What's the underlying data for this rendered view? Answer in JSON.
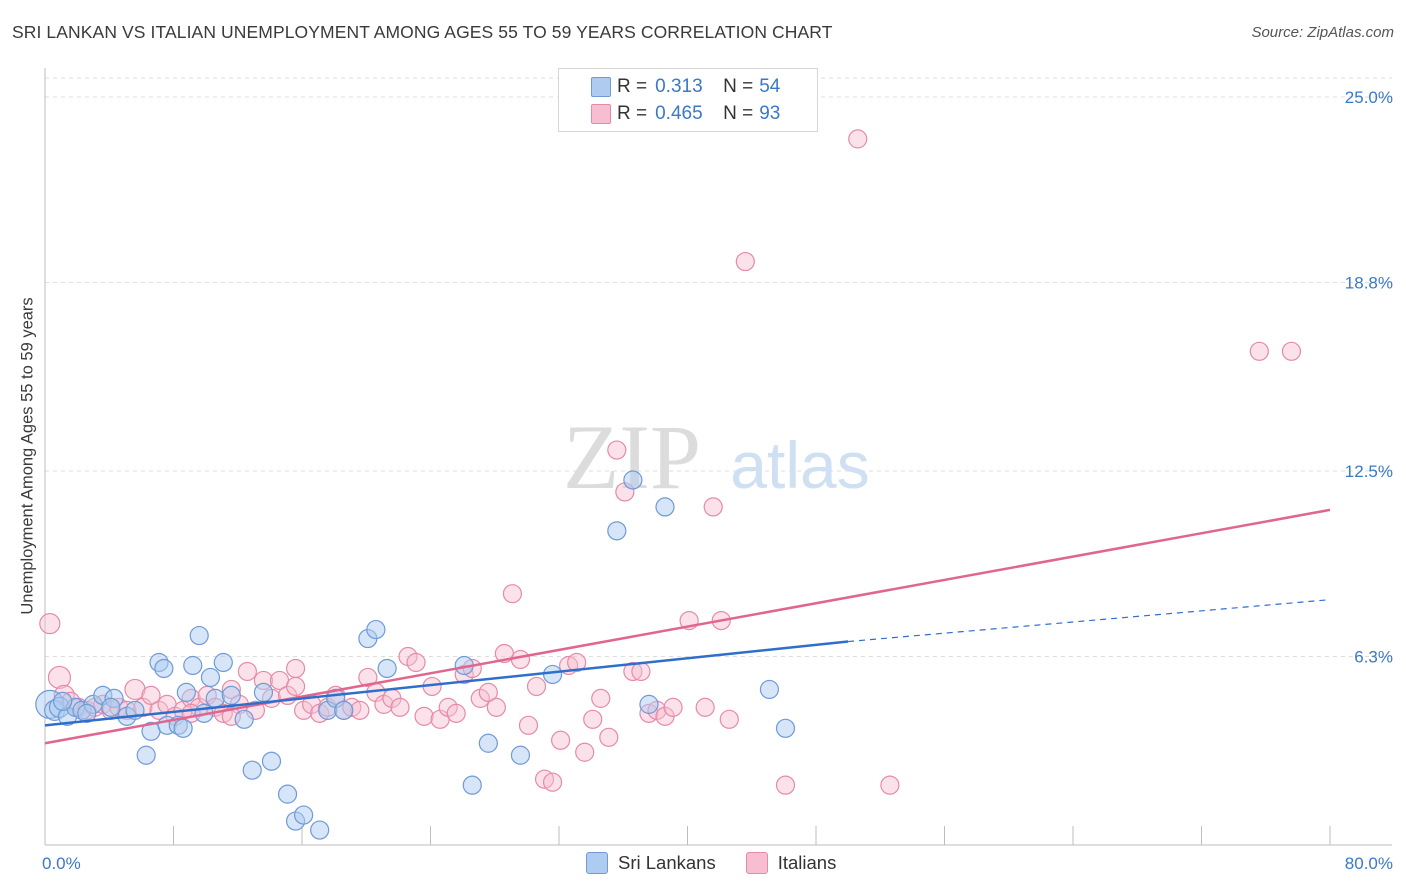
{
  "title": "SRI LANKAN VS ITALIAN UNEMPLOYMENT AMONG AGES 55 TO 59 YEARS CORRELATION CHART",
  "source": "Source: ZipAtlas.com",
  "watermark": {
    "zip": "ZIP",
    "atlas": "atlas"
  },
  "legend": {
    "sri": {
      "r_label": "R =",
      "r_value": "0.313",
      "n_label": "N =",
      "n_value": "54"
    },
    "ita": {
      "r_label": "R =",
      "r_value": "0.465",
      "n_label": "N =",
      "n_value": "93"
    }
  },
  "bottom_legend": {
    "sri": "Sri Lankans",
    "ita": "Italians"
  },
  "colors": {
    "sri_fill": "#aecbf0",
    "sri_stroke": "#6f9ad6",
    "sri_line": "#2f6fcc",
    "ita_fill": "#f6bed0",
    "ita_stroke": "#e68aaa",
    "ita_line": "#e0668f",
    "axis_text": "#3b78c8",
    "grid": "#dddddd"
  },
  "chart_data": {
    "type": "scatter",
    "title": "SRI LANKAN VS ITALIAN UNEMPLOYMENT AMONG AGES 55 TO 59 YEARS CORRELATION CHART",
    "xlabel": "",
    "ylabel": "Unemployment Among Ages 55 to 59 years",
    "xlim": [
      0,
      80
    ],
    "ylim": [
      0,
      25.0
    ],
    "x_tick_labels": [
      "0.0%",
      "80.0%"
    ],
    "y_ticks": [
      6.3,
      12.5,
      18.8,
      25.0
    ],
    "y_tick_labels": [
      "6.3%",
      "12.5%",
      "18.8%",
      "25.0%"
    ],
    "grid": "horizontal dashed",
    "legend_position": "top-center",
    "series": [
      {
        "name": "Sri Lankans",
        "r": 0.313,
        "n": 54,
        "trend": {
          "x0": 0,
          "y0": 4.0,
          "x1": 50,
          "y1": 6.8,
          "dash_x1": 80,
          "dash_y1": 8.2
        },
        "points": [
          [
            0.3,
            4.7,
            14
          ],
          [
            0.6,
            4.5,
            10
          ],
          [
            0.9,
            4.6,
            10
          ],
          [
            1.4,
            4.3,
            9
          ],
          [
            1.9,
            4.6,
            9
          ],
          [
            2.3,
            4.5,
            9
          ],
          [
            3.0,
            4.7,
            9
          ],
          [
            3.6,
            5.0,
            9
          ],
          [
            4.3,
            4.9,
            9
          ],
          [
            5.1,
            4.3,
            9
          ],
          [
            5.6,
            4.5,
            9
          ],
          [
            6.3,
            3.0,
            9
          ],
          [
            6.6,
            3.8,
            9
          ],
          [
            7.1,
            6.1,
            9
          ],
          [
            7.4,
            5.9,
            9
          ],
          [
            7.6,
            4.0,
            9
          ],
          [
            8.3,
            4.0,
            9
          ],
          [
            8.6,
            3.9,
            9
          ],
          [
            8.8,
            5.1,
            9
          ],
          [
            9.2,
            6.0,
            9
          ],
          [
            9.6,
            7.0,
            9
          ],
          [
            9.9,
            4.4,
            9
          ],
          [
            10.3,
            5.6,
            9
          ],
          [
            10.6,
            4.9,
            9
          ],
          [
            11.1,
            6.1,
            9
          ],
          [
            11.6,
            5.0,
            9
          ],
          [
            12.4,
            4.2,
            9
          ],
          [
            12.9,
            2.5,
            9
          ],
          [
            13.6,
            5.1,
            9
          ],
          [
            14.1,
            2.8,
            9
          ],
          [
            15.1,
            1.7,
            9
          ],
          [
            15.6,
            0.8,
            9
          ],
          [
            16.1,
            1.0,
            9
          ],
          [
            17.1,
            0.5,
            9
          ],
          [
            17.6,
            4.5,
            9
          ],
          [
            18.1,
            4.9,
            9
          ],
          [
            18.6,
            4.5,
            9
          ],
          [
            20.1,
            6.9,
            9
          ],
          [
            20.6,
            7.2,
            9
          ],
          [
            21.3,
            5.9,
            9
          ],
          [
            26.1,
            6.0,
            9
          ],
          [
            26.6,
            2.0,
            9
          ],
          [
            27.6,
            3.4,
            9
          ],
          [
            29.6,
            3.0,
            9
          ],
          [
            31.6,
            5.7,
            9
          ],
          [
            35.6,
            10.5,
            9
          ],
          [
            36.6,
            12.2,
            9
          ],
          [
            37.6,
            4.7,
            9
          ],
          [
            38.6,
            11.3,
            9
          ],
          [
            45.1,
            5.2,
            9
          ],
          [
            46.1,
            3.9,
            9
          ],
          [
            2.6,
            4.4,
            9
          ],
          [
            4.1,
            4.6,
            9
          ],
          [
            1.1,
            4.8,
            9
          ]
        ]
      },
      {
        "name": "Italians",
        "r": 0.465,
        "n": 93,
        "trend": {
          "x0": 0,
          "y0": 3.4,
          "x1": 80,
          "y1": 11.2
        },
        "points": [
          [
            0.3,
            7.4,
            10
          ],
          [
            0.9,
            5.6,
            11
          ],
          [
            1.2,
            5.0,
            10
          ],
          [
            1.6,
            4.8,
            9
          ],
          [
            2.1,
            4.6,
            9
          ],
          [
            2.6,
            4.5,
            9
          ],
          [
            3.1,
            4.6,
            9
          ],
          [
            3.6,
            4.7,
            9
          ],
          [
            4.1,
            4.5,
            9
          ],
          [
            4.6,
            4.6,
            9
          ],
          [
            5.1,
            4.5,
            9
          ],
          [
            5.6,
            5.2,
            10
          ],
          [
            6.1,
            4.6,
            9
          ],
          [
            6.6,
            5.0,
            9
          ],
          [
            7.1,
            4.5,
            9
          ],
          [
            7.6,
            4.7,
            9
          ],
          [
            8.1,
            4.3,
            9
          ],
          [
            8.6,
            4.5,
            9
          ],
          [
            9.1,
            4.9,
            9
          ],
          [
            9.6,
            4.6,
            9
          ],
          [
            10.1,
            5.0,
            9
          ],
          [
            10.6,
            4.6,
            9
          ],
          [
            11.1,
            4.4,
            9
          ],
          [
            11.6,
            5.2,
            9
          ],
          [
            12.1,
            4.7,
            9
          ],
          [
            12.6,
            5.8,
            9
          ],
          [
            13.1,
            4.5,
            9
          ],
          [
            13.6,
            5.5,
            9
          ],
          [
            14.1,
            4.9,
            9
          ],
          [
            14.6,
            5.5,
            9
          ],
          [
            15.1,
            5.0,
            9
          ],
          [
            15.6,
            5.3,
            9
          ],
          [
            16.1,
            4.5,
            9
          ],
          [
            16.6,
            4.7,
            9
          ],
          [
            17.1,
            4.4,
            9
          ],
          [
            17.6,
            4.6,
            9
          ],
          [
            18.1,
            5.0,
            9
          ],
          [
            18.6,
            4.5,
            9
          ],
          [
            19.1,
            4.6,
            9
          ],
          [
            19.6,
            4.5,
            9
          ],
          [
            20.1,
            5.6,
            9
          ],
          [
            20.6,
            5.1,
            9
          ],
          [
            21.1,
            4.7,
            9
          ],
          [
            21.6,
            4.9,
            9
          ],
          [
            22.1,
            4.6,
            9
          ],
          [
            22.6,
            6.3,
            9
          ],
          [
            23.1,
            6.1,
            9
          ],
          [
            23.6,
            4.3,
            9
          ],
          [
            24.1,
            5.3,
            9
          ],
          [
            24.6,
            4.2,
            9
          ],
          [
            25.1,
            4.6,
            9
          ],
          [
            25.6,
            4.4,
            9
          ],
          [
            26.1,
            5.7,
            9
          ],
          [
            26.6,
            5.9,
            9
          ],
          [
            27.1,
            4.9,
            9
          ],
          [
            27.6,
            5.1,
            9
          ],
          [
            28.1,
            4.6,
            9
          ],
          [
            28.6,
            6.4,
            9
          ],
          [
            29.1,
            8.4,
            9
          ],
          [
            29.6,
            6.2,
            9
          ],
          [
            30.1,
            4.0,
            9
          ],
          [
            30.6,
            5.3,
            9
          ],
          [
            31.1,
            2.2,
            9
          ],
          [
            31.6,
            2.1,
            9
          ],
          [
            32.1,
            3.5,
            9
          ],
          [
            32.6,
            6.0,
            9
          ],
          [
            33.1,
            6.1,
            9
          ],
          [
            33.6,
            3.1,
            9
          ],
          [
            34.1,
            4.2,
            9
          ],
          [
            34.6,
            4.9,
            9
          ],
          [
            35.1,
            3.6,
            9
          ],
          [
            35.6,
            13.2,
            9
          ],
          [
            36.1,
            11.8,
            9
          ],
          [
            36.6,
            5.8,
            9
          ],
          [
            37.1,
            5.8,
            9
          ],
          [
            37.6,
            4.4,
            9
          ],
          [
            38.1,
            4.5,
            9
          ],
          [
            38.6,
            4.3,
            9
          ],
          [
            39.1,
            4.6,
            9
          ],
          [
            40.1,
            7.5,
            9
          ],
          [
            41.1,
            4.6,
            9
          ],
          [
            41.6,
            11.3,
            9
          ],
          [
            42.1,
            7.5,
            9
          ],
          [
            42.6,
            4.2,
            9
          ],
          [
            43.6,
            19.5,
            9
          ],
          [
            46.1,
            2.0,
            9
          ],
          [
            50.6,
            23.6,
            9
          ],
          [
            52.6,
            2.0,
            9
          ],
          [
            75.6,
            16.5,
            9
          ],
          [
            77.6,
            16.5,
            9
          ],
          [
            15.6,
            5.9,
            9
          ],
          [
            11.6,
            4.3,
            9
          ],
          [
            9.1,
            4.4,
            9
          ]
        ]
      }
    ]
  }
}
